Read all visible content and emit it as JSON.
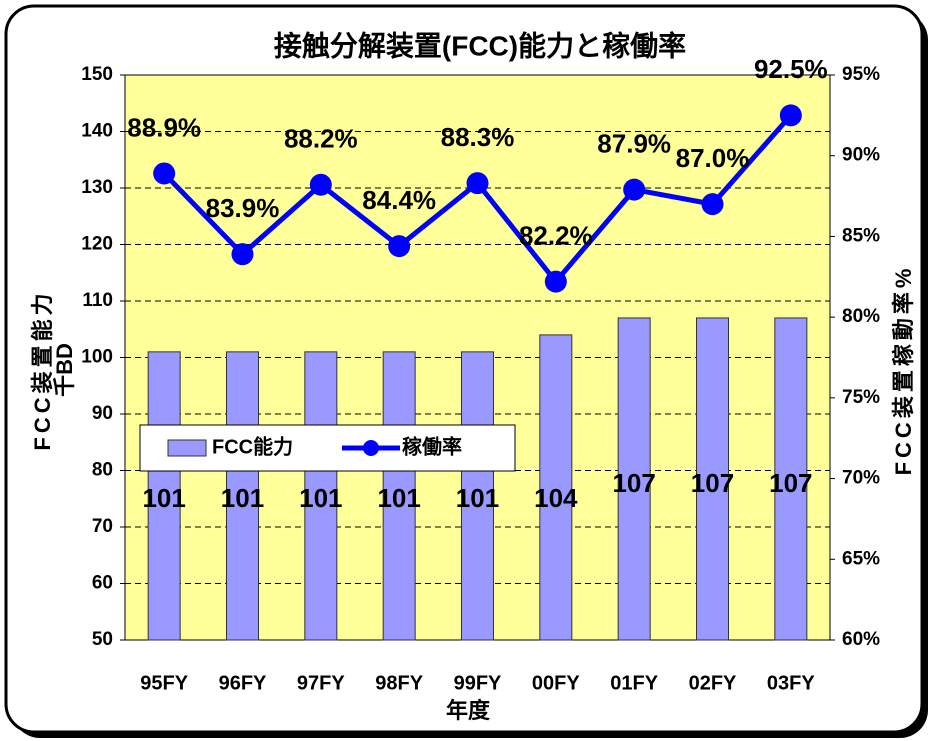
{
  "chart_data": {
    "type": "bar",
    "title": "接触分解装置(FCC)能力と稼働率",
    "xlabel": "年度",
    "ylabel": [
      "FCC装置能力",
      "千BD"
    ],
    "y2label": "FCC装置稼動率%",
    "categories": [
      "95FY",
      "96FY",
      "97FY",
      "98FY",
      "99FY",
      "00FY",
      "01FY",
      "02FY",
      "03FY"
    ],
    "series": [
      {
        "name": "FCC能力",
        "type": "bar",
        "color": "#9999ff",
        "values": [
          101,
          101,
          101,
          101,
          101,
          104,
          107,
          107,
          107
        ]
      },
      {
        "name": "稼働率",
        "type": "line",
        "axis": "y2",
        "color": "#0000ff",
        "values": [
          88.9,
          83.9,
          88.2,
          84.4,
          88.3,
          82.2,
          87.9,
          87.0,
          92.5
        ],
        "value_labels": [
          "88.9%",
          "83.9%",
          "88.2%",
          "84.4%",
          "88.3%",
          "82.2%",
          "87.9%",
          "87.0%",
          "92.5%"
        ]
      }
    ],
    "ylim": [
      50,
      150
    ],
    "yticks": [
      50,
      60,
      70,
      80,
      90,
      100,
      110,
      120,
      130,
      140,
      150
    ],
    "y2lim": [
      60,
      95
    ],
    "y2ticks": [
      {
        "value": 60,
        "label": "60%"
      },
      {
        "value": 65,
        "label": "65%"
      },
      {
        "value": 70,
        "label": "70%"
      },
      {
        "value": 75,
        "label": "75%"
      },
      {
        "value": 80,
        "label": "80%"
      },
      {
        "value": 85,
        "label": "85%"
      },
      {
        "value": 90,
        "label": "90%"
      },
      {
        "value": 95,
        "label": "95%"
      }
    ],
    "grid": true,
    "background": "#ffff99"
  }
}
